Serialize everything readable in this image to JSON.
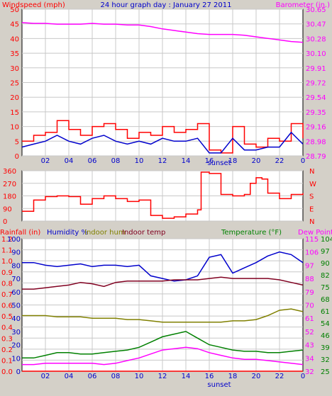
{
  "header": {
    "title": "24 hour graph day : January 27 2011",
    "left_label": "Windspeed (mph)",
    "right_label": "Barometer (in.)"
  },
  "colors": {
    "background": "#d4d0c8",
    "plot_bg": "#ffffff",
    "grid": "#c8c8c8",
    "axis_red": "#ff0000",
    "axis_magenta": "#ff00ff",
    "axis_blue": "#0000cc",
    "axis_green": "#008000",
    "wind_gust": "#ff0000",
    "wind_avg": "#0000cc",
    "barometer": "#ff00ff",
    "direction": "#ff0000",
    "humidity": "#0000cc",
    "indoor_hum": "#808000",
    "indoor_temp": "#800020",
    "temperature": "#008000",
    "dew_point": "#ff00ff",
    "rainfall": "#ff0000"
  },
  "time_axis": {
    "ticks": [
      "02",
      "04",
      "06",
      "08",
      "10",
      "12",
      "14",
      "16",
      "18",
      "20",
      "22",
      "0"
    ],
    "marker_label": "sunset"
  },
  "direction_panel": {
    "left_ticks": [
      "360",
      "270",
      "180",
      "90",
      "0"
    ],
    "right_ticks": [
      "N",
      "W",
      "S",
      "E",
      "N"
    ]
  },
  "lower_panel": {
    "labels": {
      "rainfall": "Rainfall (in)",
      "humidity": "Humidity %",
      "indoor_hum": "Indoor hum",
      "indoor_temp": "Indoor temp",
      "temperature": "Temperature (°F)",
      "dew_point": "Dew Point"
    }
  },
  "chart_data": [
    {
      "type": "line",
      "title": "24 hour graph day : January 27 2011",
      "ylabel": "Windspeed (mph)",
      "y2label": "Barometer (in.)",
      "ylim": [
        0,
        50
      ],
      "y_ticks": [
        "0",
        "5",
        "10",
        "15",
        "20",
        "25",
        "30",
        "35",
        "40",
        "45",
        "50"
      ],
      "y2_ticks": [
        "28.79",
        "28.98",
        "29.16",
        "29.35",
        "29.54",
        "29.72",
        "29.91",
        "30.10",
        "30.28",
        "30.47",
        "30.65"
      ],
      "x": [
        0,
        1,
        2,
        3,
        4,
        5,
        6,
        7,
        8,
        9,
        10,
        11,
        12,
        13,
        14,
        15,
        16,
        17,
        18,
        19,
        20,
        21,
        22,
        23,
        24
      ],
      "series": [
        {
          "name": "Windspeed (mph)",
          "style": "gust",
          "values": [
            5,
            7,
            8,
            12,
            9,
            7,
            10,
            11,
            9,
            6,
            8,
            7,
            10,
            8,
            9,
            11,
            2,
            1,
            10,
            4,
            3,
            6,
            5,
            11,
            6
          ]
        },
        {
          "name": "Windspeed (mph)",
          "style": "average",
          "values": [
            3,
            4,
            5,
            7,
            5,
            4,
            6,
            7,
            5,
            4,
            5,
            4,
            6,
            5,
            5,
            6,
            1,
            1,
            6,
            2,
            2,
            3,
            3,
            8,
            4
          ]
        },
        {
          "name": "Barometer (in.)",
          "axis": "right",
          "values": [
            30.48,
            30.47,
            30.47,
            30.46,
            30.46,
            30.46,
            30.47,
            30.46,
            30.46,
            30.45,
            30.45,
            30.43,
            30.4,
            30.38,
            30.36,
            30.34,
            30.33,
            30.33,
            30.33,
            30.32,
            30.3,
            30.28,
            30.26,
            30.24,
            30.23
          ]
        }
      ]
    },
    {
      "type": "line",
      "ylabel": "",
      "ylim": [
        0,
        360
      ],
      "y_ticks": [
        "360",
        "270",
        "180",
        "90",
        "0"
      ],
      "x": [
        0,
        1,
        2,
        3,
        4,
        5,
        6,
        7,
        8,
        9,
        10,
        11,
        12,
        13,
        14,
        15,
        15.3,
        16,
        17,
        18,
        19,
        19.5,
        20,
        20.5,
        21,
        22,
        23,
        24
      ],
      "series": [
        {
          "name": "Wind direction",
          "values": [
            70,
            150,
            175,
            180,
            175,
            120,
            160,
            180,
            160,
            140,
            150,
            40,
            20,
            30,
            50,
            80,
            350,
            340,
            190,
            180,
            190,
            270,
            310,
            300,
            200,
            160,
            190,
            200
          ]
        }
      ]
    },
    {
      "type": "line",
      "ylabel": "Rainfall (in)",
      "y2label": "Temperature (°F)",
      "ylim": [
        0,
        1.2
      ],
      "y_ticks": [
        "0.0",
        "0.1",
        "0.2",
        "0.3",
        "0.4",
        "0.5",
        "0.6",
        "0.7",
        "0.8",
        "0.9",
        "1.0",
        "1.1",
        "1.2"
      ],
      "y_ticks_humidity": [
        "0",
        "10",
        "20",
        "30",
        "40",
        "50",
        "60",
        "70",
        "80",
        "90",
        "100"
      ],
      "y2_ticks": [
        "25",
        "32",
        "39",
        "46",
        "54",
        "61",
        "68",
        "75",
        "82",
        "90",
        "97",
        "104"
      ],
      "y2_ticks_inner": [
        "32",
        "34",
        "43",
        "52",
        "61",
        "70",
        "79",
        "88",
        "97",
        "106",
        "115"
      ],
      "x": [
        0,
        1,
        2,
        3,
        4,
        5,
        6,
        7,
        8,
        9,
        10,
        11,
        12,
        13,
        14,
        15,
        16,
        17,
        18,
        19,
        20,
        21,
        22,
        23,
        24
      ],
      "series": [
        {
          "name": "Humidity %",
          "values": [
            82,
            82,
            80,
            79,
            80,
            81,
            79,
            80,
            80,
            79,
            80,
            72,
            70,
            68,
            69,
            72,
            86,
            88,
            74,
            78,
            82,
            87,
            90,
            88,
            82
          ]
        },
        {
          "name": "Indoor hum",
          "values": [
            42,
            42,
            42,
            41,
            41,
            41,
            40,
            40,
            40,
            39,
            39,
            38,
            37,
            37,
            37,
            37,
            37,
            37,
            38,
            38,
            39,
            42,
            46,
            47,
            45
          ]
        },
        {
          "name": "Indoor temp",
          "values": [
            62,
            62,
            63,
            64,
            65,
            67,
            66,
            64,
            67,
            68,
            68,
            68,
            68,
            69,
            69,
            69,
            70,
            71,
            70,
            70,
            70,
            70,
            69,
            67,
            65
          ]
        },
        {
          "name": "Temperature (°F)",
          "values": [
            10,
            10,
            12,
            14,
            14,
            13,
            13,
            14,
            15,
            16,
            18,
            22,
            26,
            28,
            30,
            25,
            20,
            18,
            16,
            15,
            15,
            14,
            14,
            15,
            16
          ]
        },
        {
          "name": "Dew Point",
          "values": [
            5,
            5,
            6,
            6,
            6,
            6,
            6,
            5,
            6,
            8,
            10,
            13,
            16,
            17,
            18,
            17,
            14,
            12,
            10,
            9,
            9,
            8,
            7,
            6,
            5
          ]
        },
        {
          "name": "Rainfall (in)",
          "values": [
            0,
            0,
            0,
            0,
            0,
            0,
            0,
            0,
            0,
            0,
            0,
            0,
            0,
            0,
            0,
            0,
            0,
            0,
            0,
            0,
            0,
            0,
            0,
            0,
            0
          ]
        }
      ]
    }
  ]
}
